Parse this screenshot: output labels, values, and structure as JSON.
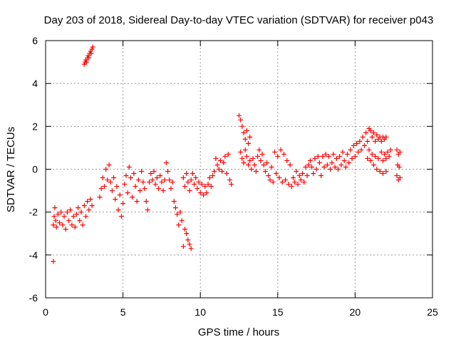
{
  "chart_data": {
    "type": "scatter",
    "title": "Day 203 of 2018, Sidereal Day-to-day VTEC variation (SDTVAR) for receiver p043",
    "xlabel": "GPS time / hours",
    "ylabel": "SDTVAR / TECUs",
    "xlim": [
      0,
      25
    ],
    "ylim": [
      -6,
      6
    ],
    "xticks": [
      0,
      5,
      10,
      15,
      20,
      25
    ],
    "yticks": [
      -6,
      -4,
      -2,
      0,
      2,
      4,
      6
    ],
    "grid": true,
    "marker": "+",
    "marker_color": "#ff0000",
    "series": [
      {
        "name": "SDTVAR",
        "points": [
          [
            0.5,
            -4.3
          ],
          [
            0.5,
            -2.6
          ],
          [
            0.55,
            -2.2
          ],
          [
            0.6,
            -1.8
          ],
          [
            0.65,
            -2.4
          ],
          [
            0.7,
            -2.7
          ],
          [
            0.8,
            -2.1
          ],
          [
            0.9,
            -2.5
          ],
          [
            1.0,
            -2.0
          ],
          [
            1.1,
            -2.6
          ],
          [
            1.2,
            -2.2
          ],
          [
            1.3,
            -2.8
          ],
          [
            1.4,
            -2.0
          ],
          [
            1.5,
            -2.4
          ],
          [
            1.6,
            -1.9
          ],
          [
            1.7,
            -2.6
          ],
          [
            1.8,
            -2.2
          ],
          [
            1.9,
            -2.7
          ],
          [
            2.0,
            -2.1
          ],
          [
            2.1,
            -1.8
          ],
          [
            2.2,
            -2.4
          ],
          [
            2.3,
            -2.0
          ],
          [
            2.4,
            -2.6
          ],
          [
            2.5,
            -1.7
          ],
          [
            2.6,
            -2.2
          ],
          [
            2.7,
            -1.5
          ],
          [
            2.8,
            -1.9
          ],
          [
            2.9,
            -1.4
          ],
          [
            3.0,
            -1.7
          ],
          [
            2.5,
            4.9
          ],
          [
            2.55,
            5.0
          ],
          [
            2.6,
            5.1
          ],
          [
            2.65,
            5.0
          ],
          [
            2.7,
            5.2
          ],
          [
            2.75,
            5.3
          ],
          [
            2.8,
            5.2
          ],
          [
            2.85,
            5.4
          ],
          [
            2.9,
            5.5
          ],
          [
            2.95,
            5.4
          ],
          [
            3.0,
            5.6
          ],
          [
            3.05,
            5.7
          ],
          [
            3.5,
            -1.3
          ],
          [
            3.6,
            -0.9
          ],
          [
            3.7,
            -0.4
          ],
          [
            3.8,
            -0.8
          ],
          [
            3.9,
            0.0
          ],
          [
            4.0,
            -0.5
          ],
          [
            4.1,
            0.2
          ],
          [
            4.2,
            -0.6
          ],
          [
            4.3,
            -1.0
          ],
          [
            4.4,
            -0.4
          ],
          [
            4.5,
            -1.4
          ],
          [
            4.6,
            -0.8
          ],
          [
            4.7,
            -1.9
          ],
          [
            4.8,
            -1.2
          ],
          [
            4.9,
            -2.2
          ],
          [
            5.0,
            -1.6
          ],
          [
            5.1,
            -0.7
          ],
          [
            5.2,
            -0.3
          ],
          [
            5.3,
            -1.1
          ],
          [
            5.4,
            0.1
          ],
          [
            5.5,
            -0.4
          ],
          [
            5.6,
            -1.3
          ],
          [
            5.7,
            -0.2
          ],
          [
            5.8,
            -0.8
          ],
          [
            5.9,
            -1.5
          ],
          [
            6.0,
            -0.5
          ],
          [
            6.1,
            -1.0
          ],
          [
            6.2,
            -0.1
          ],
          [
            6.3,
            -0.6
          ],
          [
            6.4,
            -0.9
          ],
          [
            6.5,
            -1.5
          ],
          [
            6.6,
            -1.9
          ],
          [
            6.7,
            -0.6
          ],
          [
            6.8,
            -0.2
          ],
          [
            6.9,
            -0.5
          ],
          [
            7.0,
            -0.1
          ],
          [
            7.1,
            -0.7
          ],
          [
            7.2,
            -0.4
          ],
          [
            7.3,
            -0.9
          ],
          [
            7.4,
            -0.3
          ],
          [
            7.5,
            -0.6
          ],
          [
            7.6,
            -1.0
          ],
          [
            7.7,
            -0.5
          ],
          [
            7.8,
            0.3
          ],
          [
            7.9,
            -0.1
          ],
          [
            8.0,
            -0.5
          ],
          [
            8.1,
            -0.9
          ],
          [
            8.2,
            -0.6
          ],
          [
            8.3,
            -1.5
          ],
          [
            8.4,
            -1.8
          ],
          [
            8.5,
            -2.1
          ],
          [
            8.6,
            -2.6
          ],
          [
            8.7,
            -2.0
          ],
          [
            8.8,
            -2.4
          ],
          [
            9.0,
            -2.8
          ],
          [
            9.1,
            -3.0
          ],
          [
            9.2,
            -3.3
          ],
          [
            9.3,
            -3.5
          ],
          [
            9.4,
            -3.7
          ],
          [
            8.9,
            -3.6
          ],
          [
            8.9,
            -0.4
          ],
          [
            9.0,
            -0.8
          ],
          [
            9.1,
            -0.2
          ],
          [
            9.2,
            -0.6
          ],
          [
            9.3,
            -1.0
          ],
          [
            9.4,
            -0.5
          ],
          [
            9.5,
            -0.2
          ],
          [
            9.6,
            -0.7
          ],
          [
            9.7,
            -0.4
          ],
          [
            9.8,
            -0.9
          ],
          [
            9.9,
            -0.6
          ],
          [
            10.0,
            -1.1
          ],
          [
            10.1,
            -0.7
          ],
          [
            10.2,
            -1.2
          ],
          [
            10.3,
            -0.8
          ],
          [
            10.4,
            -1.1
          ],
          [
            10.5,
            -0.7
          ],
          [
            10.6,
            -0.4
          ],
          [
            10.7,
            -0.8
          ],
          [
            10.8,
            -0.3
          ],
          [
            10.9,
            -0.1
          ],
          [
            11.0,
            0.5
          ],
          [
            11.1,
            0.2
          ],
          [
            11.2,
            0.0
          ],
          [
            11.3,
            0.4
          ],
          [
            11.4,
            -0.1
          ],
          [
            11.5,
            0.3
          ],
          [
            11.6,
            0.6
          ],
          [
            11.7,
            -0.2
          ],
          [
            11.8,
            0.7
          ],
          [
            11.9,
            -0.5
          ],
          [
            12.0,
            -0.7
          ],
          [
            12.5,
            2.5
          ],
          [
            12.6,
            2.3
          ],
          [
            12.7,
            2.0
          ],
          [
            12.8,
            1.7
          ],
          [
            12.9,
            1.4
          ],
          [
            13.0,
            1.8
          ],
          [
            13.1,
            1.2
          ],
          [
            13.2,
            1.5
          ],
          [
            12.6,
            0.8
          ],
          [
            12.7,
            0.5
          ],
          [
            12.8,
            0.3
          ],
          [
            12.9,
            0.9
          ],
          [
            13.0,
            0.6
          ],
          [
            13.1,
            0.2
          ],
          [
            13.2,
            0.4
          ],
          [
            13.3,
            0.0
          ],
          [
            13.4,
            0.5
          ],
          [
            13.5,
            0.2
          ],
          [
            13.6,
            -0.1
          ],
          [
            13.7,
            0.6
          ],
          [
            13.8,
            0.9
          ],
          [
            13.9,
            0.4
          ],
          [
            14.0,
            0.7
          ],
          [
            14.1,
            0.2
          ],
          [
            14.2,
            -0.1
          ],
          [
            14.3,
            0.3
          ],
          [
            14.4,
            -0.3
          ],
          [
            14.5,
            -0.5
          ],
          [
            14.6,
            0.1
          ],
          [
            14.7,
            -0.6
          ],
          [
            14.8,
            0.8
          ],
          [
            14.9,
            -0.2
          ],
          [
            15.0,
            0.6
          ],
          [
            15.1,
            -0.4
          ],
          [
            15.2,
            0.9
          ],
          [
            15.3,
            -0.6
          ],
          [
            15.4,
            0.7
          ],
          [
            15.5,
            -0.5
          ],
          [
            15.6,
            0.4
          ],
          [
            15.7,
            -0.7
          ],
          [
            15.8,
            0.2
          ],
          [
            15.9,
            -0.8
          ],
          [
            16.0,
            -0.4
          ],
          [
            16.1,
            -0.6
          ],
          [
            16.2,
            -0.1
          ],
          [
            16.3,
            -0.7
          ],
          [
            16.4,
            -0.3
          ],
          [
            16.5,
            -0.5
          ],
          [
            16.6,
            -0.2
          ],
          [
            16.7,
            -0.6
          ],
          [
            16.8,
            0.1
          ],
          [
            16.9,
            -0.3
          ],
          [
            17.0,
            0.2
          ],
          [
            17.1,
            0.4
          ],
          [
            17.2,
            0.1
          ],
          [
            17.3,
            -0.2
          ],
          [
            17.4,
            0.5
          ],
          [
            17.5,
            0.0
          ],
          [
            17.6,
            0.6
          ],
          [
            17.7,
            0.3
          ],
          [
            17.8,
            -0.3
          ],
          [
            17.9,
            0.6
          ],
          [
            18.0,
            0.1
          ],
          [
            18.1,
            0.7
          ],
          [
            18.2,
            0.2
          ],
          [
            18.3,
            0.6
          ],
          [
            18.4,
            0.0
          ],
          [
            18.5,
            0.3
          ],
          [
            18.6,
            0.7
          ],
          [
            18.7,
            0.1
          ],
          [
            18.8,
            0.5
          ],
          [
            18.9,
            0.0
          ],
          [
            19.0,
            0.6
          ],
          [
            19.1,
            0.2
          ],
          [
            19.2,
            0.8
          ],
          [
            19.3,
            0.4
          ],
          [
            19.4,
            0.1
          ],
          [
            19.5,
            0.7
          ],
          [
            19.6,
            0.3
          ],
          [
            19.7,
            0.9
          ],
          [
            19.8,
            0.5
          ],
          [
            19.9,
            1.1
          ],
          [
            20.0,
            0.6
          ],
          [
            20.1,
            1.2
          ],
          [
            20.2,
            0.8
          ],
          [
            20.3,
            1.3
          ],
          [
            20.4,
            0.9
          ],
          [
            20.5,
            1.5
          ],
          [
            20.6,
            1.1
          ],
          [
            20.7,
            1.7
          ],
          [
            20.8,
            1.3
          ],
          [
            20.9,
            1.9
          ],
          [
            21.0,
            1.8
          ],
          [
            21.1,
            1.5
          ],
          [
            21.2,
            1.7
          ],
          [
            21.3,
            1.3
          ],
          [
            21.4,
            1.6
          ],
          [
            21.5,
            1.4
          ],
          [
            21.6,
            1.5
          ],
          [
            21.7,
            1.3
          ],
          [
            21.8,
            1.5
          ],
          [
            21.9,
            1.4
          ],
          [
            22.0,
            1.5
          ],
          [
            20.8,
            0.5
          ],
          [
            20.9,
            0.9
          ],
          [
            21.0,
            0.4
          ],
          [
            21.1,
            0.7
          ],
          [
            21.2,
            0.2
          ],
          [
            21.3,
            0.6
          ],
          [
            21.4,
            0.0
          ],
          [
            21.5,
            0.5
          ],
          [
            21.6,
            -0.1
          ],
          [
            21.7,
            0.8
          ],
          [
            21.8,
            0.4
          ],
          [
            21.9,
            0.7
          ],
          [
            22.0,
            0.5
          ],
          [
            22.1,
            0.8
          ],
          [
            22.2,
            0.6
          ],
          [
            22.3,
            0.9
          ],
          [
            22.0,
            -0.1
          ],
          [
            21.8,
            -0.2
          ],
          [
            22.7,
            0.9
          ],
          [
            22.8,
            0.7
          ],
          [
            22.9,
            0.8
          ],
          [
            22.7,
            -0.3
          ],
          [
            22.8,
            -0.5
          ],
          [
            22.9,
            -0.4
          ],
          [
            22.75,
            0.2
          ],
          [
            22.85,
            0.1
          ]
        ]
      }
    ]
  }
}
